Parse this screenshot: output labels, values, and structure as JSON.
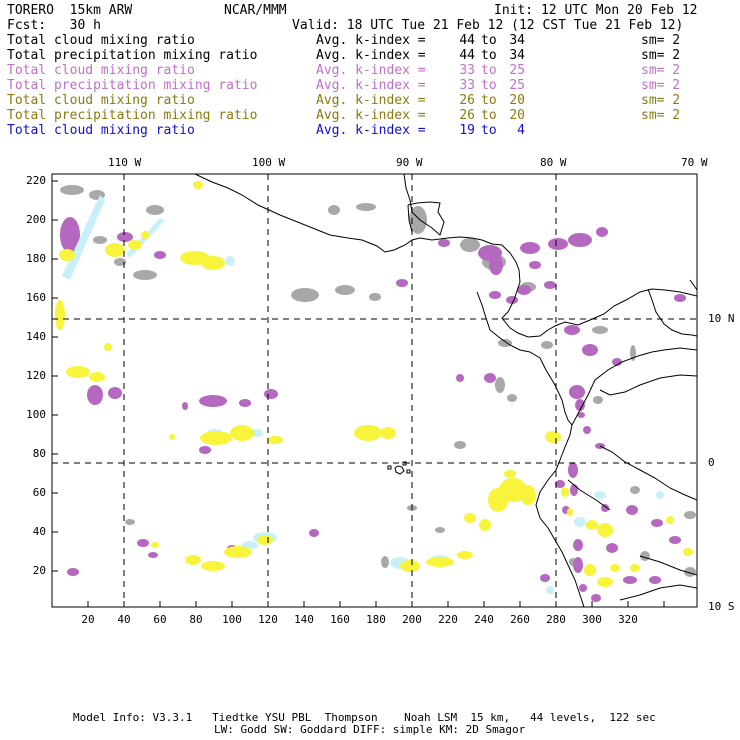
{
  "header": {
    "model": "TORERO  15km ARW",
    "center": "NCAR/MMM",
    "init": "Init: 12 UTC Mon 20 Feb 12",
    "fcst": "Fcst:   30 h",
    "valid": "Valid: 18 UTC Tue 21 Feb 12 (12 CST Tue 21 Feb 12)"
  },
  "legend": [
    {
      "name": "Total cloud mixing ratio",
      "avg": "Avg. k-index =",
      "lo": "44",
      "to": "to",
      "hi": "34",
      "sm": "sm= 2",
      "color": "#000000"
    },
    {
      "name": "Total precipitation mixing ratio",
      "avg": "Avg. k-index =",
      "lo": "44",
      "to": "to",
      "hi": "34",
      "sm": "sm= 2",
      "color": "#000000"
    },
    {
      "name": "Total cloud mixing ratio",
      "avg": "Avg. k-index =",
      "lo": "33",
      "to": "to",
      "hi": "25",
      "sm": "sm= 2",
      "color": "#c070c8"
    },
    {
      "name": "Total precipitation mixing ratio",
      "avg": "Avg. k-index =",
      "lo": "33",
      "to": "to",
      "hi": "25",
      "sm": "sm= 2",
      "color": "#c070c8"
    },
    {
      "name": "Total cloud mixing ratio",
      "avg": "Avg. k-index =",
      "lo": "26",
      "to": "to",
      "hi": "20",
      "sm": "sm= 2",
      "color": "#8a7a10"
    },
    {
      "name": "Total precipitation mixing ratio",
      "avg": "Avg. k-index =",
      "lo": "26",
      "to": "to",
      "hi": "20",
      "sm": "sm= 2",
      "color": "#8a7a10"
    },
    {
      "name": "Total cloud mixing ratio",
      "avg": "Avg. k-index =",
      "lo": "19",
      "to": "to",
      "hi": "4",
      "sm": "",
      "color": "#1010d0"
    }
  ],
  "map": {
    "x_ticks": [
      "20",
      "40",
      "60",
      "80",
      "100",
      "120",
      "140",
      "160",
      "180",
      "200",
      "220",
      "240",
      "260",
      "280",
      "300",
      "320"
    ],
    "y_ticks": [
      "220",
      "200",
      "180",
      "160",
      "140",
      "120",
      "100",
      "80",
      "60",
      "40",
      "20"
    ],
    "lon_labels": [
      "110 W",
      "100 W",
      "90 W",
      "80 W",
      "70 W"
    ],
    "lat_labels": [
      "10 N",
      "0",
      "10 S"
    ],
    "colors": {
      "gray": "#a8a8a8",
      "purple": "#b468c0",
      "yellow": "#f8f43c",
      "cyan": "#c8f0f8"
    }
  },
  "footer": {
    "line1": "Model Info: V3.3.1   Tiedtke YSU PBL  Thompson    Noah LSM  15 km,   44 levels,  122 sec",
    "line2": "LW: Godd SW: Goddard DIFF: simple KM: 2D Smagor"
  }
}
